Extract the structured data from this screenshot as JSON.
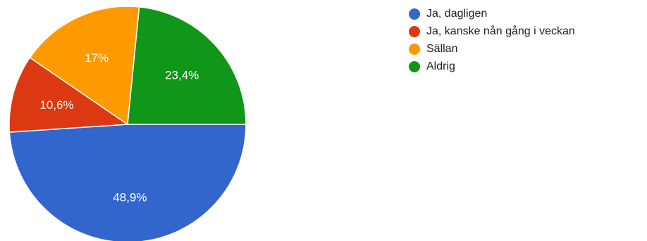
{
  "chart_data": {
    "type": "pie",
    "title": "",
    "legend_position": "right",
    "slices": [
      {
        "label": "Ja, dagligen",
        "value": 48.9,
        "display": "48,9%",
        "color": "#3366cc"
      },
      {
        "label": "Ja, kanske nån gång i veckan",
        "value": 10.6,
        "display": "10,6%",
        "color": "#dc3912"
      },
      {
        "label": "Sällan",
        "value": 17,
        "display": "17%",
        "color": "#ff9900"
      },
      {
        "label": "Aldrig",
        "value": 23.4,
        "display": "23,4%",
        "color": "#109618"
      }
    ]
  }
}
